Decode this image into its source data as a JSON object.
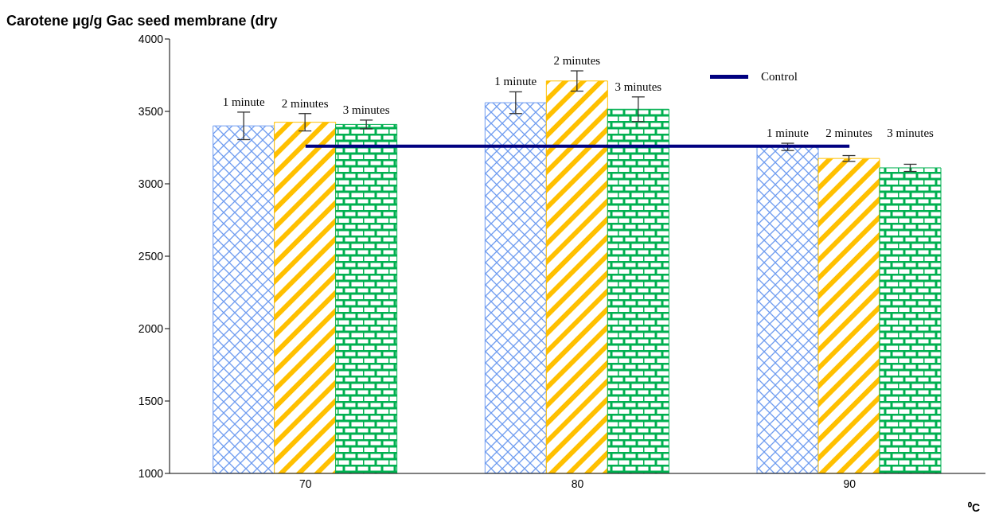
{
  "chart_data": {
    "type": "bar",
    "title": "Carotene µg/g Gac seed membrane (dry",
    "xlabel": "⁰C",
    "categories": [
      "70",
      "80",
      "90"
    ],
    "series": [
      {
        "name": "1 minute",
        "color": "#6f9cf0",
        "values": [
          3400,
          3560,
          3255
        ],
        "errors": [
          95,
          75,
          25
        ]
      },
      {
        "name": "2 minutes",
        "color": "#ffc000",
        "values": [
          3425,
          3710,
          3175
        ],
        "errors": [
          60,
          70,
          20
        ]
      },
      {
        "name": "3 minutes",
        "color": "#00b050",
        "values": [
          3410,
          3515,
          3110
        ],
        "errors": [
          30,
          85,
          25
        ]
      },
      {
        "name": "Control",
        "type": "line",
        "color": "#000080",
        "values": [
          3260,
          3260,
          3260
        ]
      }
    ],
    "ylim": [
      1000,
      4000
    ],
    "yticks": [
      1000,
      1500,
      2000,
      2500,
      3000,
      3500,
      4000
    ],
    "legend": "top right"
  }
}
